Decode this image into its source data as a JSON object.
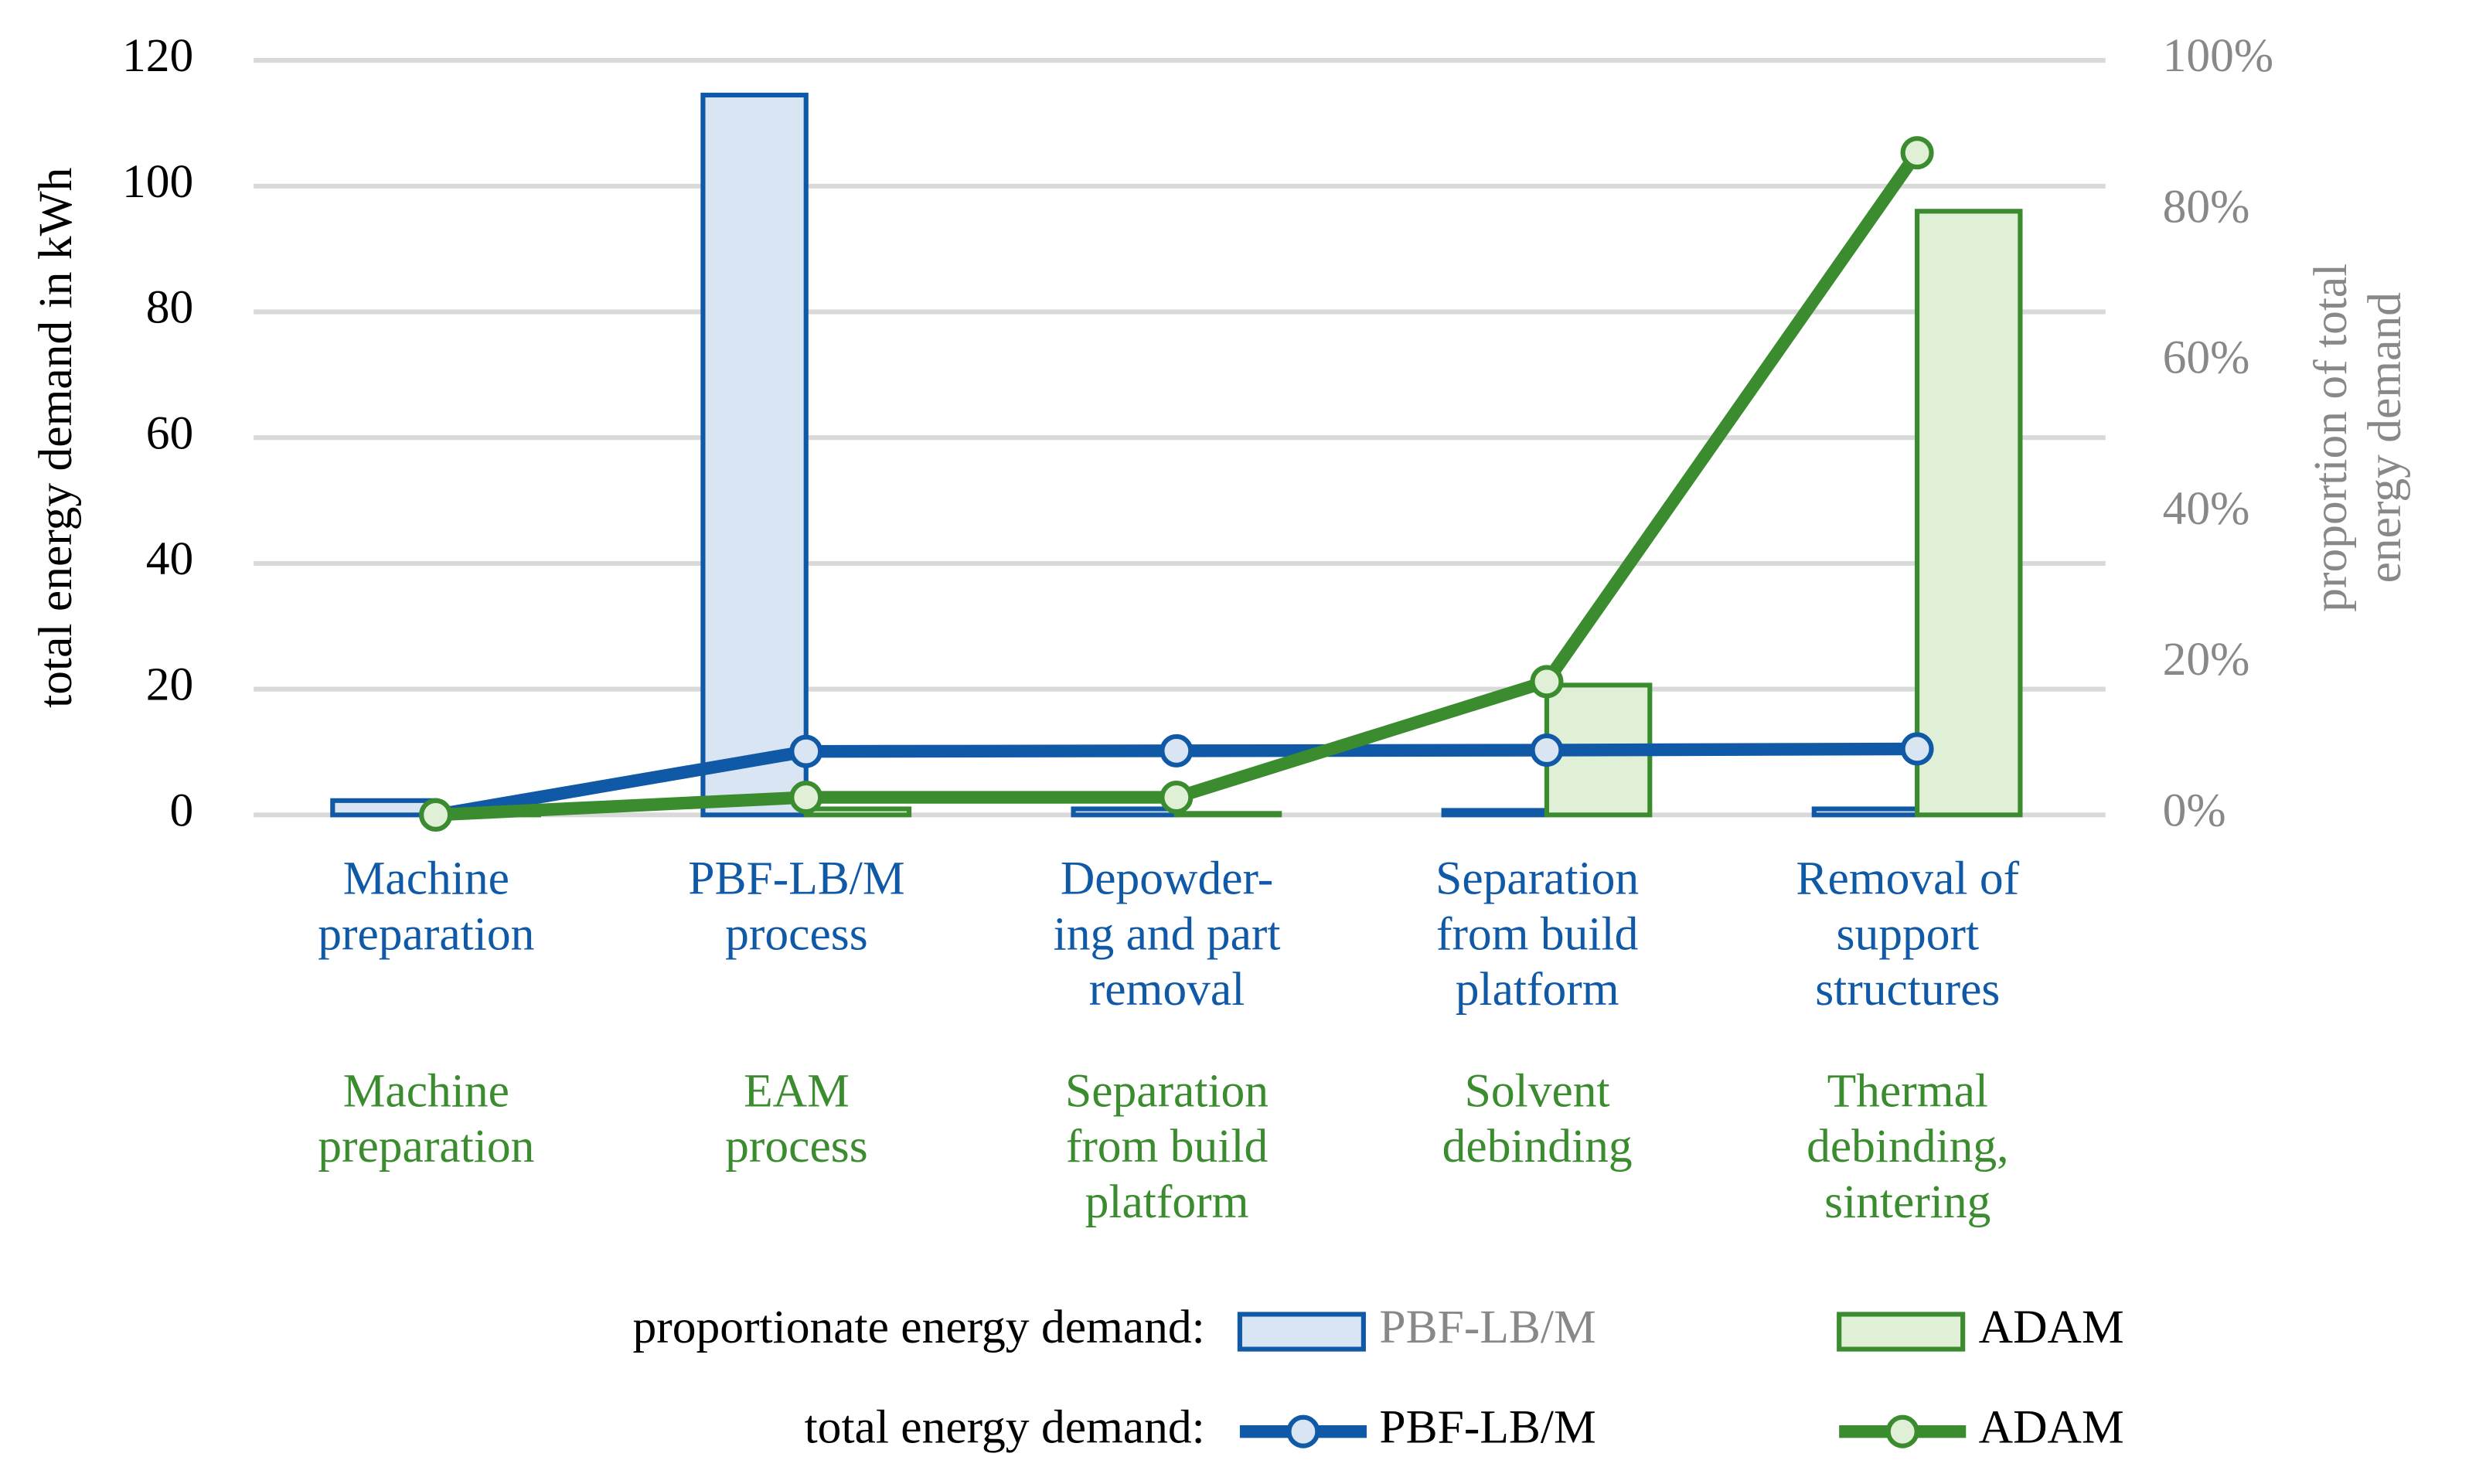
{
  "chart_data": {
    "type": "bar-line",
    "y_label": "total energy demand in kWh",
    "y2_label": "proportion of total\nenergy demand",
    "categories": [
      "Machine\npreparation",
      "PBF-LB/M\nprocess",
      "Depowder-\ning and part\nremoval",
      "Separation\nfrom build\nplatform",
      "Removal of\nsupport\nstructures"
    ],
    "categories_2": [
      "Machine\npreparation",
      "EAM\nprocess",
      "Separation\nfrom build\nplatform",
      "Solvent\ndebinding",
      "Thermal\ndebinding,\nsintering"
    ],
    "legend_groups": [
      "proportionate energy demand:",
      "total energy demand:"
    ],
    "series": [
      {
        "name": "PBF-LB/M",
        "kind": "bar",
        "axis": "y2",
        "color": "#1059a6",
        "fill": "#d9e5f3",
        "values": [
          1.9,
          95.4,
          0.8,
          0.6,
          0.8
        ]
      },
      {
        "name": "ADAM",
        "kind": "bar",
        "axis": "y2",
        "color": "#3a8c2f",
        "fill": "#dff0d7",
        "values": [
          0.1,
          0.8,
          0.2,
          17.2,
          80
        ]
      },
      {
        "name": "PBF-LB/M",
        "kind": "line",
        "color": "#1059a6",
        "values": [
          0,
          10.1,
          10.2,
          10.3,
          10.5
        ]
      },
      {
        "name": "ADAM",
        "kind": "line",
        "color": "#3a8c2f",
        "values": [
          0,
          2.8,
          2.8,
          21.2,
          105.3
        ]
      }
    ],
    "ylim": [
      0,
      120
    ],
    "yticks": [
      0,
      20,
      40,
      60,
      80,
      100,
      120
    ],
    "y2lim": [
      0,
      100
    ],
    "y2ticks": [
      {
        "value": 0,
        "label": "0%"
      },
      {
        "value": 20,
        "label": "20%"
      },
      {
        "value": 40,
        "label": "40%"
      },
      {
        "value": 60,
        "label": "60%"
      },
      {
        "value": 80,
        "label": "80%"
      },
      {
        "value": 100,
        "label": "100%"
      }
    ],
    "grid": true
  }
}
